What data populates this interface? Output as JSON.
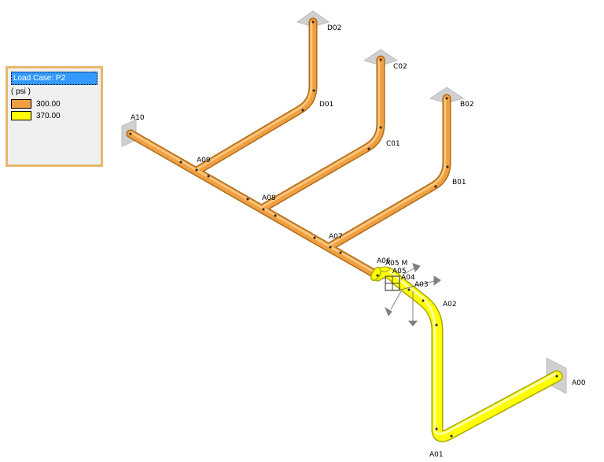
{
  "legend": {
    "title": "Load Case: P2",
    "unit": "( psi )",
    "items": [
      {
        "label": "300.00",
        "color": "#f0a040"
      },
      {
        "label": "370.00",
        "color": "#ffff00"
      }
    ]
  },
  "nodes": {
    "D02": "D02",
    "D01": "D01",
    "C02": "C02",
    "C01": "C01",
    "B02": "B02",
    "B01": "B01",
    "A10": "A10",
    "A09": "A09",
    "A08": "A08",
    "A07": "A07",
    "A06": "A06",
    "A05M": "A05 M",
    "A05": "A05",
    "A04": "A04",
    "A03": "A03",
    "A02": "A02",
    "A01": "A01",
    "A00": "A00"
  },
  "colors": {
    "orange_pipe": "#f0a040",
    "orange_edge": "#b06a18",
    "yellow_pipe": "#ffff00",
    "yellow_edge": "#a8a800",
    "anchor": "#cfcfcf"
  }
}
